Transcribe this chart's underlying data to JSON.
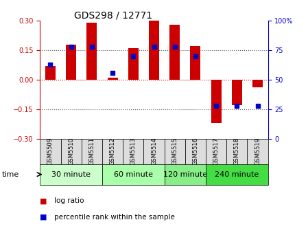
{
  "title": "GDS298 / 12771",
  "samples": [
    "GSM5509",
    "GSM5510",
    "GSM5511",
    "GSM5512",
    "GSM5513",
    "GSM5514",
    "GSM5515",
    "GSM5516",
    "GSM5517",
    "GSM5518",
    "GSM5519"
  ],
  "log_ratio": [
    0.07,
    0.18,
    0.29,
    0.01,
    0.16,
    0.3,
    0.28,
    0.17,
    -0.22,
    -0.13,
    -0.04
  ],
  "percentile_rank": [
    63,
    78,
    78,
    56,
    70,
    78,
    78,
    70,
    28,
    28,
    28
  ],
  "groups": [
    {
      "label": "30 minute",
      "color": "#ccffcc",
      "start": 0,
      "end": 3
    },
    {
      "label": "60 minute",
      "color": "#aaffaa",
      "start": 3,
      "end": 6
    },
    {
      "label": "120 minute",
      "color": "#88ee88",
      "start": 6,
      "end": 8
    },
    {
      "label": "240 minute",
      "color": "#44dd44",
      "start": 8,
      "end": 11
    }
  ],
  "ylim_left": [
    -0.3,
    0.3
  ],
  "ylim_right": [
    0,
    100
  ],
  "yticks_left": [
    -0.3,
    -0.15,
    0,
    0.15,
    0.3
  ],
  "yticks_right": [
    0,
    25,
    50,
    75,
    100
  ],
  "bar_color": "#cc0000",
  "dot_color": "#0000cc",
  "bar_width": 0.5,
  "dot_size": 25,
  "hline_color": "#cc0000",
  "bg_color": "#ffffff",
  "plot_bg": "#ffffff",
  "left_axis_color": "#cc0000",
  "right_axis_color": "#0000cc",
  "legend_log_ratio": "log ratio",
  "legend_percentile": "percentile rank within the sample",
  "time_label": "time",
  "sample_box_color": "#dddddd",
  "title_fontsize": 10,
  "tick_fontsize": 7,
  "legend_fontsize": 7.5,
  "group_label_fontsize": 8
}
